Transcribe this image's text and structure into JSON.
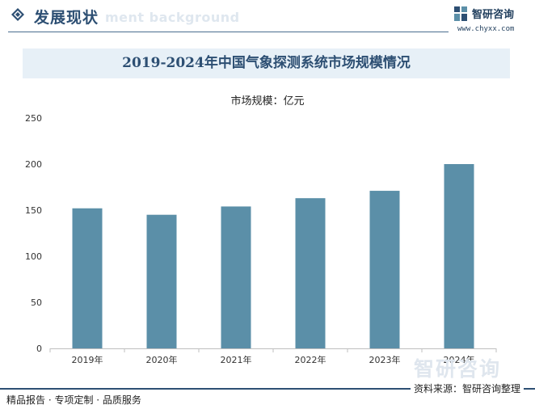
{
  "header": {
    "section_title": "发展现状",
    "ghost_text": "ment background",
    "brand_name": "智研咨询",
    "brand_url": "www.chyxx.com"
  },
  "chart_data": {
    "type": "bar",
    "title": "2019-2024年中国气象探测系统市场规模情况",
    "subtitle": "市场规模：亿元",
    "categories": [
      "2019年",
      "2020年",
      "2021年",
      "2022年",
      "2023年",
      "2024年"
    ],
    "values": [
      152,
      145,
      154,
      163,
      171,
      200
    ],
    "ylim": [
      0,
      250
    ],
    "yticks": [
      0,
      50,
      100,
      150,
      200,
      250
    ],
    "bar_color": "#5b8fa8",
    "grid": false,
    "legend": "none"
  },
  "watermark": {
    "text": "智研咨询"
  },
  "footer": {
    "left": "精品报告 · 专项定制 · 品质服务",
    "source": "资料来源：智研咨询整理"
  },
  "colors": {
    "accent": "#2d4f73",
    "title_band": "#e7f0f7"
  }
}
